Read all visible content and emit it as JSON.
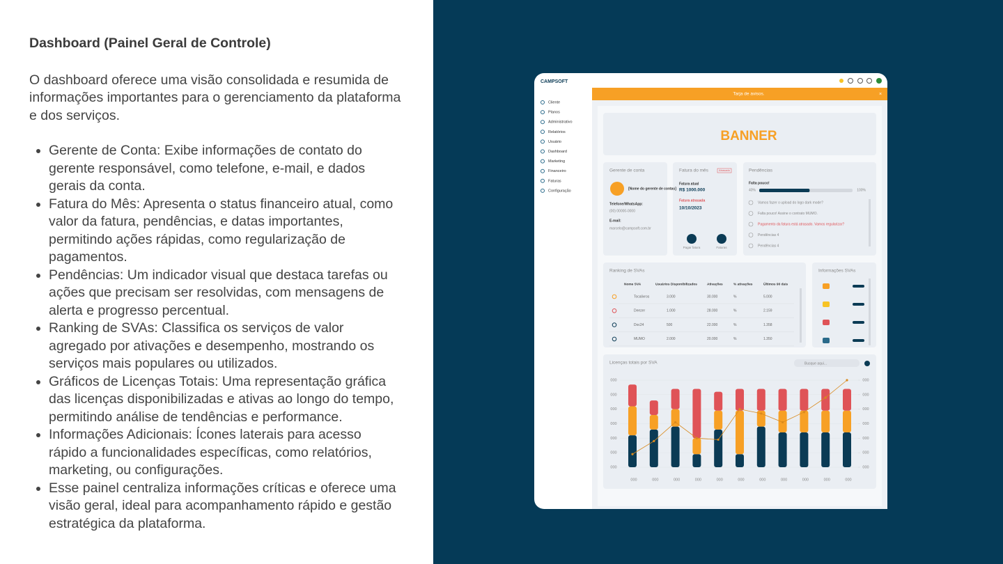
{
  "slide": {
    "title": "Dashboard (Painel Geral de Controle)",
    "intro": "O dashboard oferece uma visão consolidada e resumida de informações importantes para o gerenciamento da plataforma e dos serviços.",
    "bullets": [
      "Gerente de Conta: Exibe informações de contato do gerente responsável, como telefone, e-mail, e dados gerais da conta.",
      "Fatura do Mês: Apresenta o status financeiro atual, como valor da fatura, pendências, e datas importantes, permitindo ações rápidas, como regularização de pagamentos.",
      "Pendências: Um indicador visual que destaca tarefas ou ações que precisam ser resolvidas, com mensagens de alerta e progresso percentual.",
      "Ranking de SVAs: Classifica os serviços de valor agregado por ativações e desempenho, mostrando os serviços mais populares ou utilizados.",
      "Gráficos de Licenças Totais: Uma representação gráfica das licenças disponibilizadas e ativas ao longo do tempo, permitindo análise de tendências e performance.",
      "Informações Adicionais: Ícones laterais para acesso rápido a funcionalidades específicas, como relatórios, marketing, ou configurações.",
      "Esse painel centraliza informações críticas e oferece uma visão geral, ideal para acompanhamento rápido e gestão estratégica da plataforma."
    ]
  },
  "app": {
    "logo": "CAMPSOFT",
    "notice": "Tarja de avisos.",
    "close": "×",
    "menu": [
      "Cliente",
      "Planos",
      "Administrativo",
      "Relatórios",
      "Usuário",
      "Dashboard",
      "Marketing",
      "Financeiro",
      "Faturas",
      "Configuração"
    ],
    "banner": "BANNER",
    "manager": {
      "title": "Gerente de conta",
      "name": "[Nome do gerente de contas]",
      "phone_label": "Telefone/WhatsApp:",
      "phone": "(00) 00000-0000",
      "email_label": "E-mail:",
      "email": "marcelo@campsoft.com.br"
    },
    "invoice": {
      "title": "Fatura do mês",
      "badge": "Atrasado",
      "current_label": "Fatura atual",
      "current": "R$ 1000.000",
      "late_label": "Fatura atrasada",
      "late_date": "10/10/2023",
      "actions": [
        "Pagar fatura",
        "Faturas"
      ]
    },
    "pending": {
      "title": "Pendências",
      "progress_label": "Falta pouco!",
      "progress_min": "40%",
      "progress_max": "100%",
      "progress": 54,
      "items": [
        "Vamos fazer o upload do logo dark mode?",
        "Falta pouco! Assine o contrato MUMO.",
        "Pagamento da fatura está atrasado. Vamos regularizar?",
        "Pendências 4",
        "Pendências 4"
      ]
    },
    "ranking": {
      "title": "Ranking de SVAs",
      "columns": [
        "Nome SVA",
        "Usuários Disponibilizados",
        "Ativações",
        "% ativações",
        "Últimos 90 dais"
      ],
      "rows": [
        [
          "Tocalivros",
          "3.000",
          "30.000",
          "%",
          "5.000"
        ],
        [
          "Deezer",
          "1.000",
          "28.000",
          "%",
          "2.159"
        ],
        [
          "Doc24",
          "500",
          "22.000",
          "%",
          "1.358"
        ],
        [
          "MUMO",
          "2.000",
          "20.000",
          "%",
          "1.350"
        ]
      ]
    },
    "info": {
      "title": "Informações SVAs"
    },
    "chart": {
      "type": "bar",
      "title": "Licenças totais por SVA",
      "search": "Busque aqui...",
      "categories": [
        "000",
        "000",
        "000",
        "000",
        "000",
        "000",
        "000",
        "000",
        "000",
        "000",
        "000"
      ],
      "ylim": [
        0,
        6
      ],
      "yticks": [
        {
          "value": 0,
          "label": "000"
        },
        {
          "value": 1,
          "label": "000"
        },
        {
          "value": 2,
          "label": "000"
        },
        {
          "value": 3,
          "label": "000"
        },
        {
          "value": 4,
          "label": "000"
        },
        {
          "value": 5,
          "label": "000"
        },
        {
          "value": 6,
          "label": "000"
        }
      ],
      "y2lim": [
        0,
        6
      ],
      "y2ticks": [
        {
          "value": 0,
          "label": "000"
        },
        {
          "value": 1,
          "label": "000"
        },
        {
          "value": 2,
          "label": "000"
        },
        {
          "value": 3,
          "label": "000"
        },
        {
          "value": 4,
          "label": "000"
        },
        {
          "value": 5,
          "label": "000"
        },
        {
          "value": 6,
          "label": "000"
        }
      ],
      "series": [
        {
          "color": "#0b3b55",
          "values": [
            2.2,
            2.6,
            2.8,
            0.9,
            2.6,
            0.9,
            2.8,
            2.4,
            2.4,
            2.4,
            2.4
          ]
        },
        {
          "color": "#f7a025",
          "values": [
            2.0,
            1.0,
            1.2,
            1.1,
            1.3,
            3.0,
            1.1,
            1.5,
            1.5,
            1.5,
            1.5
          ]
        },
        {
          "color": "#df5357",
          "values": [
            1.5,
            1.0,
            1.4,
            3.4,
            1.3,
            1.5,
            1.5,
            1.5,
            1.5,
            1.5,
            1.5
          ]
        },
        {
          "type": "line",
          "axis": "y2",
          "color": "#d98a1e",
          "values": [
            0.9,
            1.8,
            3.1,
            2.0,
            1.9,
            4.0,
            3.7,
            3.1,
            3.8,
            4.8,
            6.0
          ]
        }
      ]
    }
  }
}
